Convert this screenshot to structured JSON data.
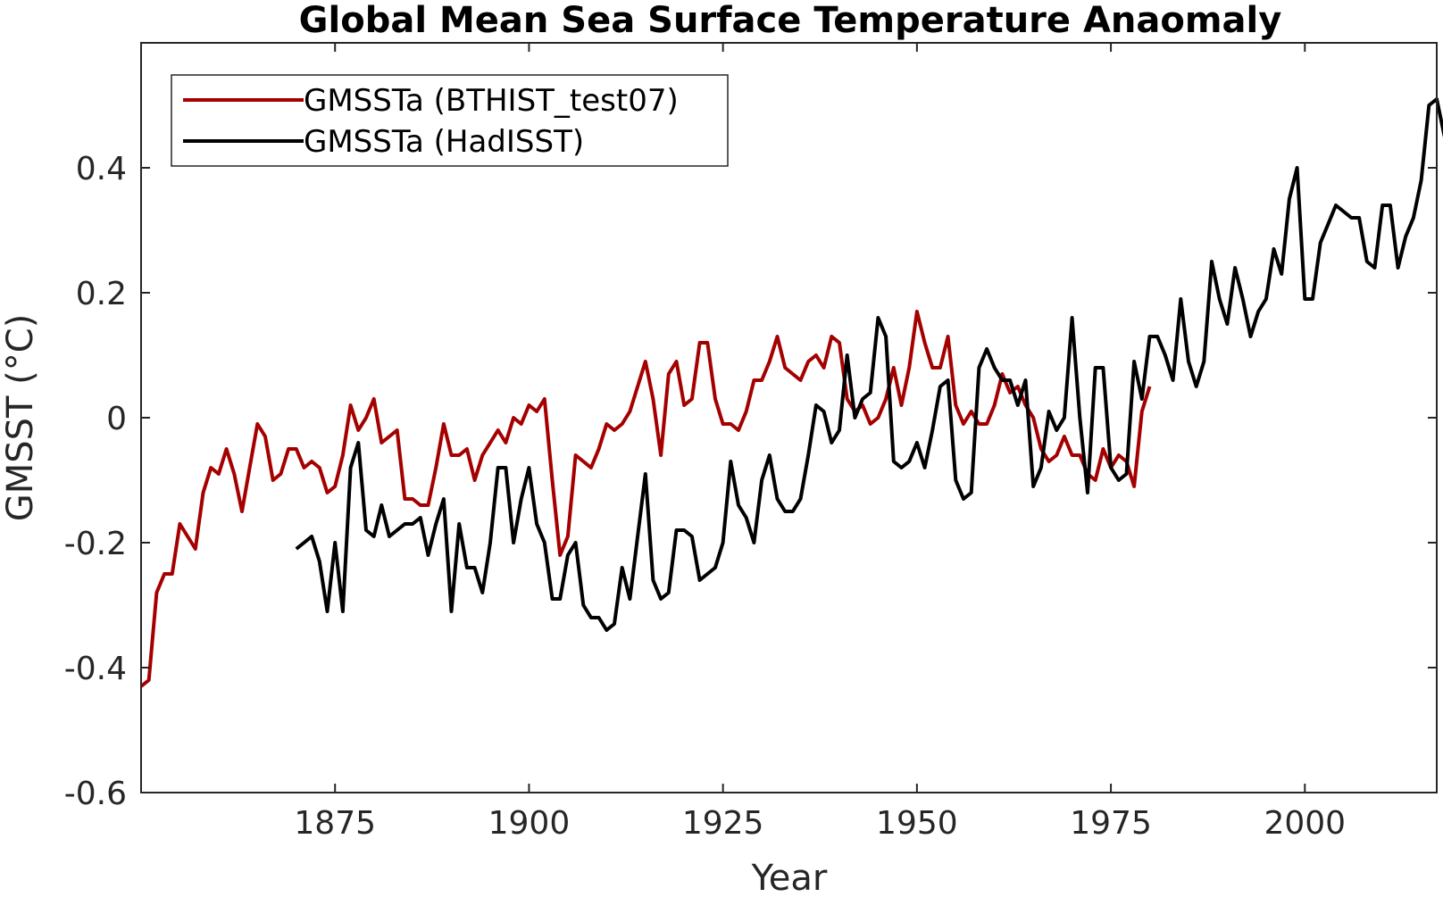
{
  "chart_data": {
    "type": "line",
    "title": "Global Mean Sea Surface Temperature Anaomaly",
    "xlabel": "Year",
    "ylabel": "GMSST (°C)",
    "xlim": [
      1850,
      2017
    ],
    "ylim": [
      -0.6,
      0.6
    ],
    "x_ticks": [
      1875,
      1900,
      1925,
      1950,
      1975,
      2000
    ],
    "y_ticks": [
      -0.6,
      -0.4,
      -0.2,
      0,
      0.2,
      0.4
    ],
    "y_tick_labels": [
      "-0.6",
      "-0.4",
      "-0.2",
      "0",
      "0.2",
      "0.4"
    ],
    "grid": false,
    "legend_position": "top-left",
    "series": [
      {
        "name": "GMSSTa (BTHIST_test07)",
        "color": "#a50000",
        "x_start": 1850,
        "values": [
          -0.43,
          -0.42,
          -0.28,
          -0.25,
          -0.25,
          -0.17,
          -0.19,
          -0.21,
          -0.12,
          -0.08,
          -0.09,
          -0.05,
          -0.09,
          -0.15,
          -0.08,
          -0.01,
          -0.03,
          -0.1,
          -0.09,
          -0.05,
          -0.05,
          -0.08,
          -0.07,
          -0.08,
          -0.12,
          -0.11,
          -0.06,
          0.02,
          -0.02,
          0.0,
          0.03,
          -0.04,
          -0.03,
          -0.02,
          -0.13,
          -0.13,
          -0.14,
          -0.14,
          -0.08,
          -0.01,
          -0.06,
          -0.06,
          -0.05,
          -0.1,
          -0.06,
          -0.04,
          -0.02,
          -0.04,
          0.0,
          -0.01,
          0.02,
          0.01,
          0.03,
          -0.1,
          -0.22,
          -0.19,
          -0.06,
          -0.07,
          -0.08,
          -0.05,
          -0.01,
          -0.02,
          -0.01,
          0.01,
          0.05,
          0.09,
          0.03,
          -0.06,
          0.07,
          0.09,
          0.02,
          0.03,
          0.12,
          0.12,
          0.03,
          -0.01,
          -0.01,
          -0.02,
          0.01,
          0.06,
          0.06,
          0.09,
          0.13,
          0.08,
          0.07,
          0.06,
          0.09,
          0.1,
          0.08,
          0.13,
          0.12,
          0.03,
          0.01,
          0.02,
          -0.01,
          0.0,
          0.03,
          0.08,
          0.02,
          0.08,
          0.17,
          0.12,
          0.08,
          0.08,
          0.13,
          0.02,
          -0.01,
          0.01,
          -0.01,
          -0.01,
          0.02,
          0.07,
          0.04,
          0.05,
          0.02,
          0.0,
          -0.05,
          -0.07,
          -0.06,
          -0.03,
          -0.06,
          -0.06,
          -0.09,
          -0.1,
          -0.05,
          -0.08,
          -0.06,
          -0.07,
          -0.11,
          0.01,
          0.05
        ]
      },
      {
        "name": "GMSSTa (HadISST)",
        "color": "#000000",
        "x_start": 1870,
        "values": [
          -0.21,
          -0.2,
          -0.19,
          -0.23,
          -0.31,
          -0.2,
          -0.31,
          -0.08,
          -0.04,
          -0.18,
          -0.19,
          -0.14,
          -0.19,
          -0.18,
          -0.17,
          -0.17,
          -0.16,
          -0.22,
          -0.17,
          -0.13,
          -0.31,
          -0.17,
          -0.24,
          -0.24,
          -0.28,
          -0.2,
          -0.08,
          -0.08,
          -0.2,
          -0.13,
          -0.08,
          -0.17,
          -0.2,
          -0.29,
          -0.29,
          -0.22,
          -0.2,
          -0.3,
          -0.32,
          -0.32,
          -0.34,
          -0.33,
          -0.24,
          -0.29,
          -0.19,
          -0.09,
          -0.26,
          -0.29,
          -0.28,
          -0.18,
          -0.18,
          -0.19,
          -0.26,
          -0.25,
          -0.24,
          -0.2,
          -0.07,
          -0.14,
          -0.16,
          -0.2,
          -0.1,
          -0.06,
          -0.13,
          -0.15,
          -0.15,
          -0.13,
          -0.06,
          0.02,
          0.01,
          -0.04,
          -0.02,
          0.1,
          0.0,
          0.03,
          0.04,
          0.16,
          0.13,
          -0.07,
          -0.08,
          -0.07,
          -0.04,
          -0.08,
          -0.02,
          0.05,
          0.06,
          -0.1,
          -0.13,
          -0.12,
          0.08,
          0.11,
          0.08,
          0.06,
          0.06,
          0.02,
          0.06,
          -0.11,
          -0.08,
          0.01,
          -0.02,
          0.0,
          0.16,
          0.0,
          -0.12,
          0.08,
          0.08,
          -0.08,
          -0.1,
          -0.09,
          0.09,
          0.03,
          0.13,
          0.13,
          0.1,
          0.06,
          0.19,
          0.09,
          0.05,
          0.09,
          0.25,
          0.19,
          0.15,
          0.24,
          0.19,
          0.13,
          0.17,
          0.19,
          0.27,
          0.23,
          0.35,
          0.4,
          0.19,
          0.19,
          0.28,
          0.31,
          0.34,
          0.33,
          0.32,
          0.32,
          0.25,
          0.24,
          0.34,
          0.34,
          0.24,
          0.29,
          0.32,
          0.38,
          0.5,
          0.51,
          0.45
        ]
      }
    ]
  }
}
